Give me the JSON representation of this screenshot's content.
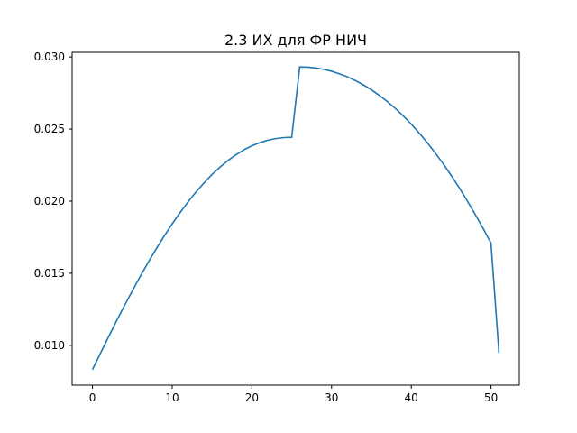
{
  "chart_data": {
    "type": "line",
    "title": "2.3 ИХ для ФР НИЧ",
    "xlabel": "",
    "ylabel": "",
    "xlim": [
      -2.55,
      53.55
    ],
    "ylim": [
      0.00724,
      0.03032
    ],
    "x_ticks": [
      0,
      10,
      20,
      30,
      40,
      50
    ],
    "x_tick_labels": [
      "0",
      "10",
      "20",
      "30",
      "40",
      "50"
    ],
    "y_ticks": [
      0.01,
      0.015,
      0.02,
      0.025,
      0.03
    ],
    "y_tick_labels": [
      "0.010",
      "0.015",
      "0.020",
      "0.025",
      "0.030"
    ],
    "grid": false,
    "legend": "none",
    "series": [
      {
        "color": "#1f77b4",
        "x": [
          0,
          1,
          2,
          3,
          4,
          5,
          6,
          7,
          8,
          9,
          10,
          11,
          12,
          13,
          14,
          15,
          16,
          17,
          18,
          19,
          20,
          21,
          22,
          23,
          24,
          25,
          26,
          27,
          28,
          29,
          30,
          31,
          32,
          33,
          34,
          35,
          36,
          37,
          38,
          39,
          40,
          41,
          42,
          43,
          44,
          45,
          46,
          47,
          48,
          49,
          50,
          51
        ],
        "values": [
          0.00832,
          0.00945,
          0.01057,
          0.01167,
          0.01274,
          0.01378,
          0.01479,
          0.01576,
          0.01669,
          0.01758,
          0.01842,
          0.01921,
          0.01995,
          0.02064,
          0.02127,
          0.02185,
          0.02236,
          0.02282,
          0.02322,
          0.02356,
          0.02384,
          0.02406,
          0.02423,
          0.02434,
          0.02441,
          0.02443,
          0.02931,
          0.02929,
          0.02924,
          0.02914,
          0.02901,
          0.02883,
          0.02862,
          0.02836,
          0.02806,
          0.02772,
          0.02733,
          0.0269,
          0.02643,
          0.02591,
          0.02534,
          0.02472,
          0.02406,
          0.02335,
          0.02259,
          0.02179,
          0.02094,
          0.02004,
          0.0191,
          0.01812,
          0.01709,
          0.00946
        ]
      }
    ]
  }
}
